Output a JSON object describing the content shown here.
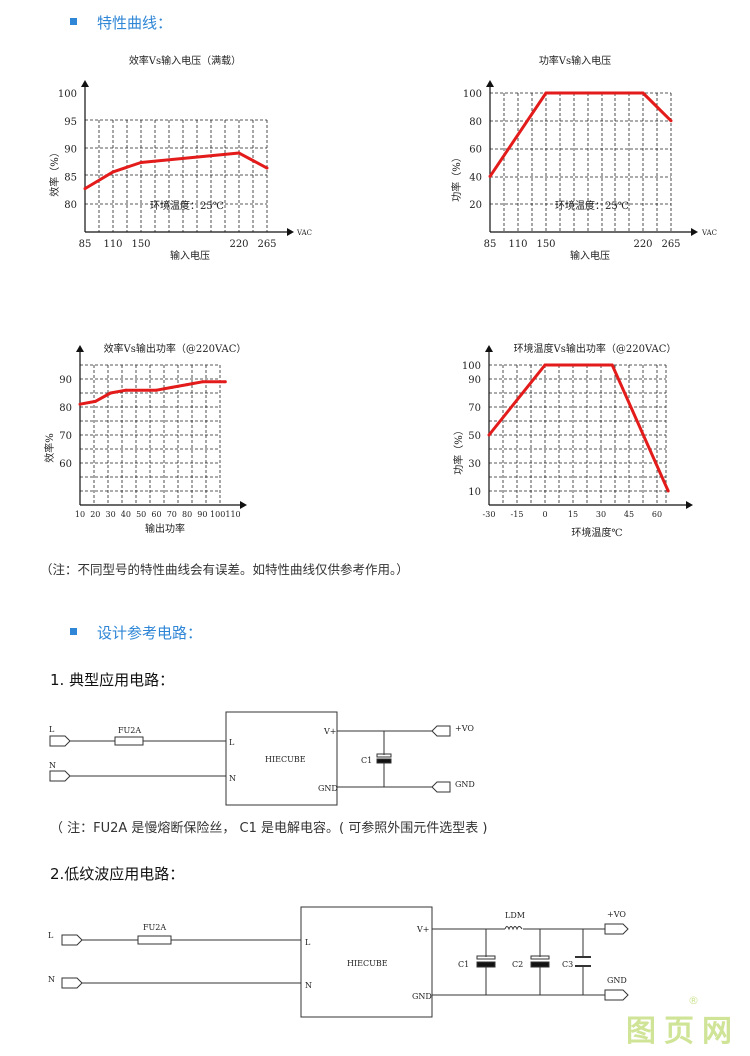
{
  "sections": {
    "curves_title": "特性曲线：",
    "curves_note": "（注：不同型号的特性曲线会有误差。如特性曲线仅供参考作用。）",
    "circuit_title": "设计参考电路：",
    "typical_title": "1.   典型应用电路：",
    "typical_note": "（ 注：FU2A 是慢熔断保险丝，  C1 是电解电容。( 可参照外围元件选型表 )",
    "lowripple_title": "2.低纹波应用电路："
  },
  "colors": {
    "accent": "#2f86d6",
    "curve": "#e31b1b",
    "watermark": "#cfe496"
  },
  "chart_data": [
    {
      "type": "line",
      "title": "效率Vs输入电压（满载）",
      "xlabel": "输入电压",
      "ylabel": "效率（%）",
      "x_unit": "VAC",
      "xticks": [
        85,
        110,
        150,
        220,
        265
      ],
      "yticks": [
        80,
        85,
        90,
        95,
        100
      ],
      "annotation": "环境温度：25℃",
      "grid": true,
      "x": [
        85,
        110,
        150,
        220,
        265
      ],
      "y": [
        82.8,
        85.8,
        87.5,
        89.2,
        86.5
      ]
    },
    {
      "type": "line",
      "title": "功率Vs输入电压",
      "xlabel": "输入电压",
      "ylabel": "功率（%）",
      "x_unit": "VAC",
      "xticks": [
        85,
        110,
        150,
        220,
        265
      ],
      "yticks": [
        20,
        40,
        60,
        80,
        100
      ],
      "annotation": "环境温度：25℃",
      "grid": true,
      "x": [
        85,
        150,
        220,
        265
      ],
      "y": [
        40,
        100,
        100,
        80
      ]
    },
    {
      "type": "line",
      "title": "效率Vs输出功率（@220VAC）",
      "xlabel": "输出功率",
      "ylabel": "效率%",
      "xticks": [
        10,
        20,
        30,
        40,
        50,
        60,
        70,
        80,
        90,
        100,
        110
      ],
      "yticks": [
        60,
        70,
        80,
        90
      ],
      "grid": true,
      "x": [
        10,
        20,
        30,
        40,
        60,
        70,
        80,
        90,
        105
      ],
      "y": [
        81,
        82,
        85,
        86,
        86,
        87,
        88,
        89,
        89
      ]
    },
    {
      "type": "line",
      "title": "环境温度Vs输出功率（@220VAC）",
      "xlabel": "环境温度℃",
      "ylabel": "功率（%）",
      "xticks": [
        -30,
        -15,
        0,
        15,
        30,
        45,
        60
      ],
      "yticks": [
        10,
        30,
        50,
        70,
        90,
        100
      ],
      "grid": true,
      "x": [
        -30,
        0,
        36,
        66
      ],
      "y": [
        50,
        100,
        100,
        10
      ]
    }
  ],
  "circuit1": {
    "in_l": "L",
    "in_n": "N",
    "fuse": "FU2A",
    "module": "HIECUBE",
    "pin_l": "L",
    "pin_n": "N",
    "pin_vp": "V+",
    "pin_gnd": "GND",
    "cap": "C1",
    "out_vo": "+VO",
    "out_gnd": "GND"
  },
  "circuit2": {
    "in_l": "L",
    "in_n": "N",
    "fuse": "FU2A",
    "module": "HIECUBE",
    "pin_l": "L",
    "pin_n": "N",
    "pin_vp": "V+",
    "pin_gnd": "GND",
    "c1": "C1",
    "c2": "C2",
    "c3": "C3",
    "inductor": "LDM",
    "out_vo": "+VO",
    "out_gnd": "GND"
  },
  "watermark": "图页网"
}
